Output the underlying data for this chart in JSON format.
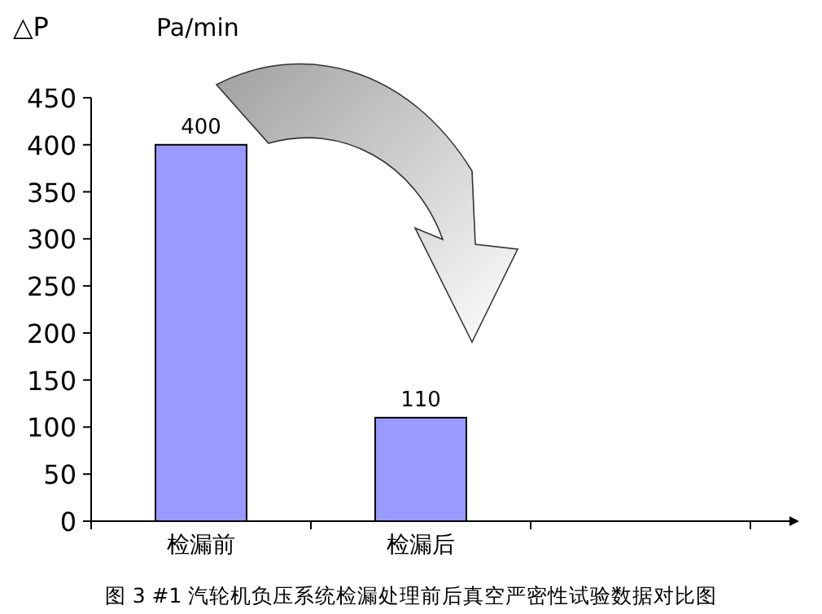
{
  "chart_data": {
    "type": "bar",
    "title": "图 3 #1 汽轮机负压系统检漏处理前后真空严密性试验数据对比图",
    "ylabel": "△P",
    "annotations": [
      "Pa/min"
    ],
    "categories": [
      "检漏前",
      "检漏后",
      null
    ],
    "values": [
      400,
      110,
      null
    ],
    "color": "#9999ff",
    "ylim": [
      0,
      450
    ],
    "yticks": [
      0,
      50,
      100,
      150,
      200,
      250,
      300,
      350,
      400,
      450
    ],
    "data_labels": true
  }
}
